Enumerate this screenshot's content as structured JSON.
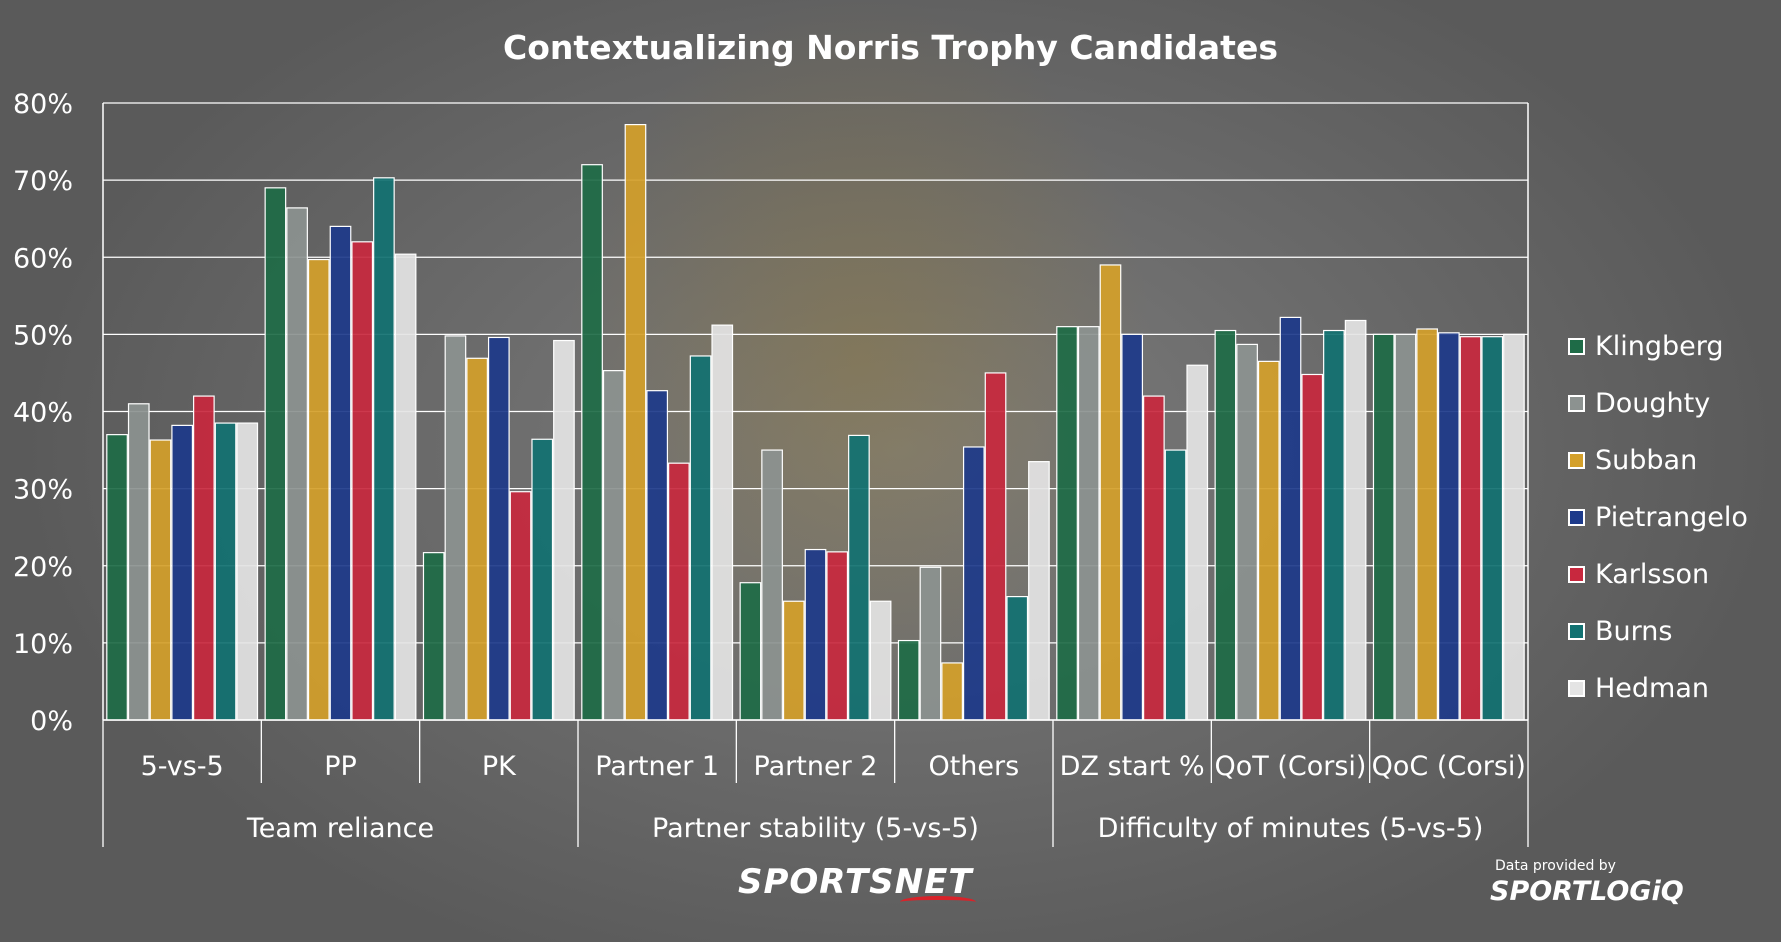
{
  "chart_data": {
    "type": "bar",
    "title": "Contextualizing Norris Trophy Candidates",
    "ylim": [
      0,
      80
    ],
    "y_ticks": [
      "0%",
      "10%",
      "20%",
      "30%",
      "40%",
      "50%",
      "60%",
      "70%",
      "80%"
    ],
    "grid": true,
    "legend_position": "right",
    "categories": [
      "5-vs-5",
      "PP",
      "PK",
      "Partner 1",
      "Partner 2",
      "Others",
      "DZ start %",
      "QoT (Corsi)",
      "QoC (Corsi)"
    ],
    "groups": [
      {
        "label": "Team reliance",
        "categories": [
          "5-vs-5",
          "PP",
          "PK"
        ]
      },
      {
        "label": "Partner stability (5-vs-5)",
        "categories": [
          "Partner 1",
          "Partner 2",
          "Others"
        ]
      },
      {
        "label": "Difficulty of minutes (5-vs-5)",
        "categories": [
          "DZ start %",
          "QoT (Corsi)",
          "QoC (Corsi)"
        ]
      }
    ],
    "series": [
      {
        "name": "Klingberg",
        "color": "#1e6b47",
        "values": [
          37,
          69,
          21.7,
          72,
          17.8,
          10.3,
          51,
          50.5,
          50
        ]
      },
      {
        "name": "Doughty",
        "color": "#8c9290",
        "values": [
          41,
          66.4,
          49.8,
          45.3,
          35,
          19.8,
          51,
          48.7,
          50
        ]
      },
      {
        "name": "Subban",
        "color": "#d4a02a",
        "values": [
          36.3,
          59.7,
          46.9,
          77.2,
          15.4,
          7.4,
          59,
          46.5,
          50.7
        ]
      },
      {
        "name": "Pietrangelo",
        "color": "#1d3a8a",
        "values": [
          38.2,
          64,
          49.6,
          42.7,
          22.1,
          35.4,
          50,
          52.2,
          50.2
        ]
      },
      {
        "name": "Karlsson",
        "color": "#c8283e",
        "values": [
          42,
          62,
          29.6,
          33.3,
          21.8,
          45,
          42,
          44.8,
          49.7
        ]
      },
      {
        "name": "Burns",
        "color": "#117171",
        "values": [
          38.5,
          70.3,
          36.4,
          47.2,
          36.9,
          16,
          35,
          50.5,
          49.7
        ]
      },
      {
        "name": "Hedman",
        "color": "#e4e4e4",
        "values": [
          38.5,
          60.4,
          49.2,
          51.2,
          15.4,
          33.5,
          46,
          51.8,
          50
        ]
      }
    ]
  },
  "branding": {
    "sportsnet": "SPORTSNET",
    "data_credit": "Data provided by",
    "sportlogiq": "SPORTLOGiQ"
  }
}
